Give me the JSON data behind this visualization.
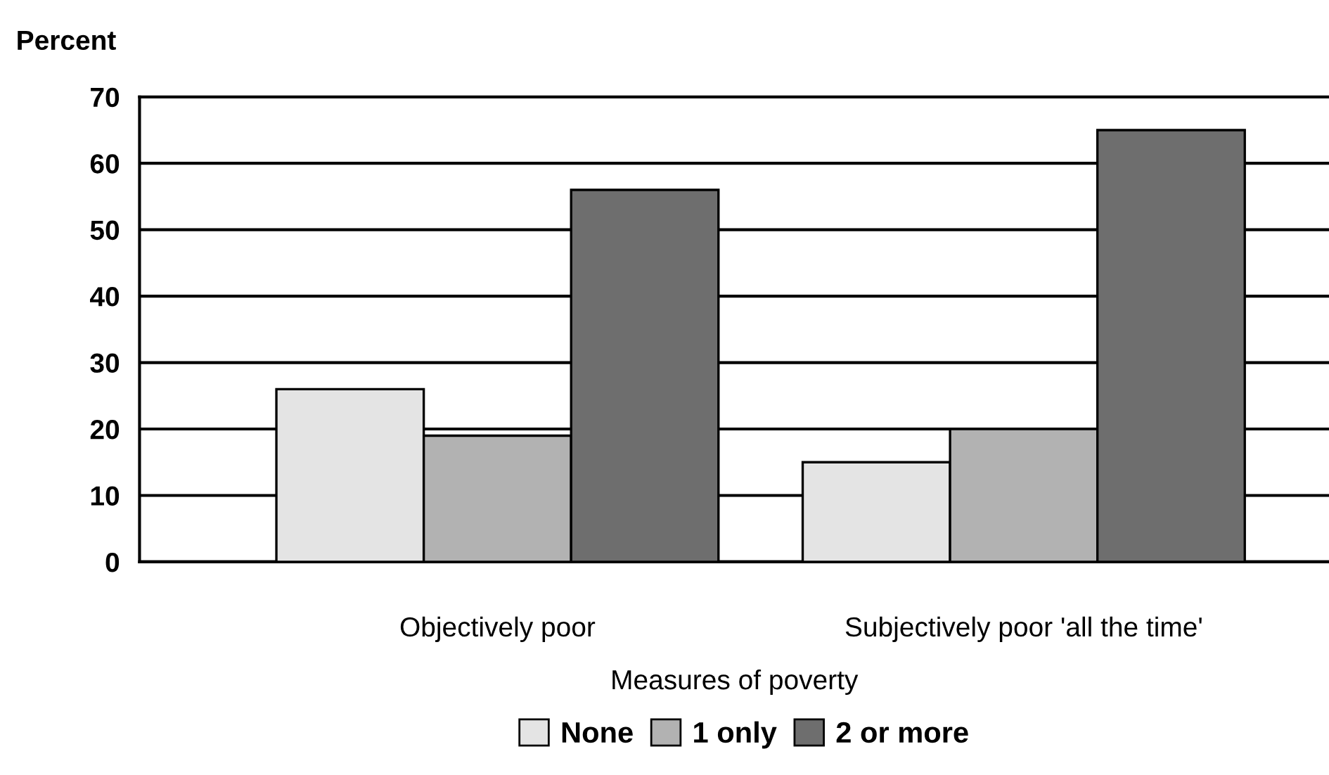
{
  "chart_data": {
    "type": "bar",
    "ylabel": "Percent",
    "xlabel": "Measures of poverty",
    "categories": [
      "Objectively poor",
      "Subjectively poor 'all the time'"
    ],
    "series": [
      {
        "name": "None",
        "color": "#e4e4e4",
        "values": [
          26,
          15
        ]
      },
      {
        "name": "1 only",
        "color": "#b2b2b2",
        "values": [
          19,
          20
        ]
      },
      {
        "name": "2 or more",
        "color": "#6e6e6e",
        "values": [
          56,
          65
        ]
      }
    ],
    "ylim": [
      0,
      70
    ],
    "yticks": [
      0,
      10,
      20,
      30,
      40,
      50,
      60,
      70
    ],
    "grid": "y",
    "legend": "bottom"
  }
}
